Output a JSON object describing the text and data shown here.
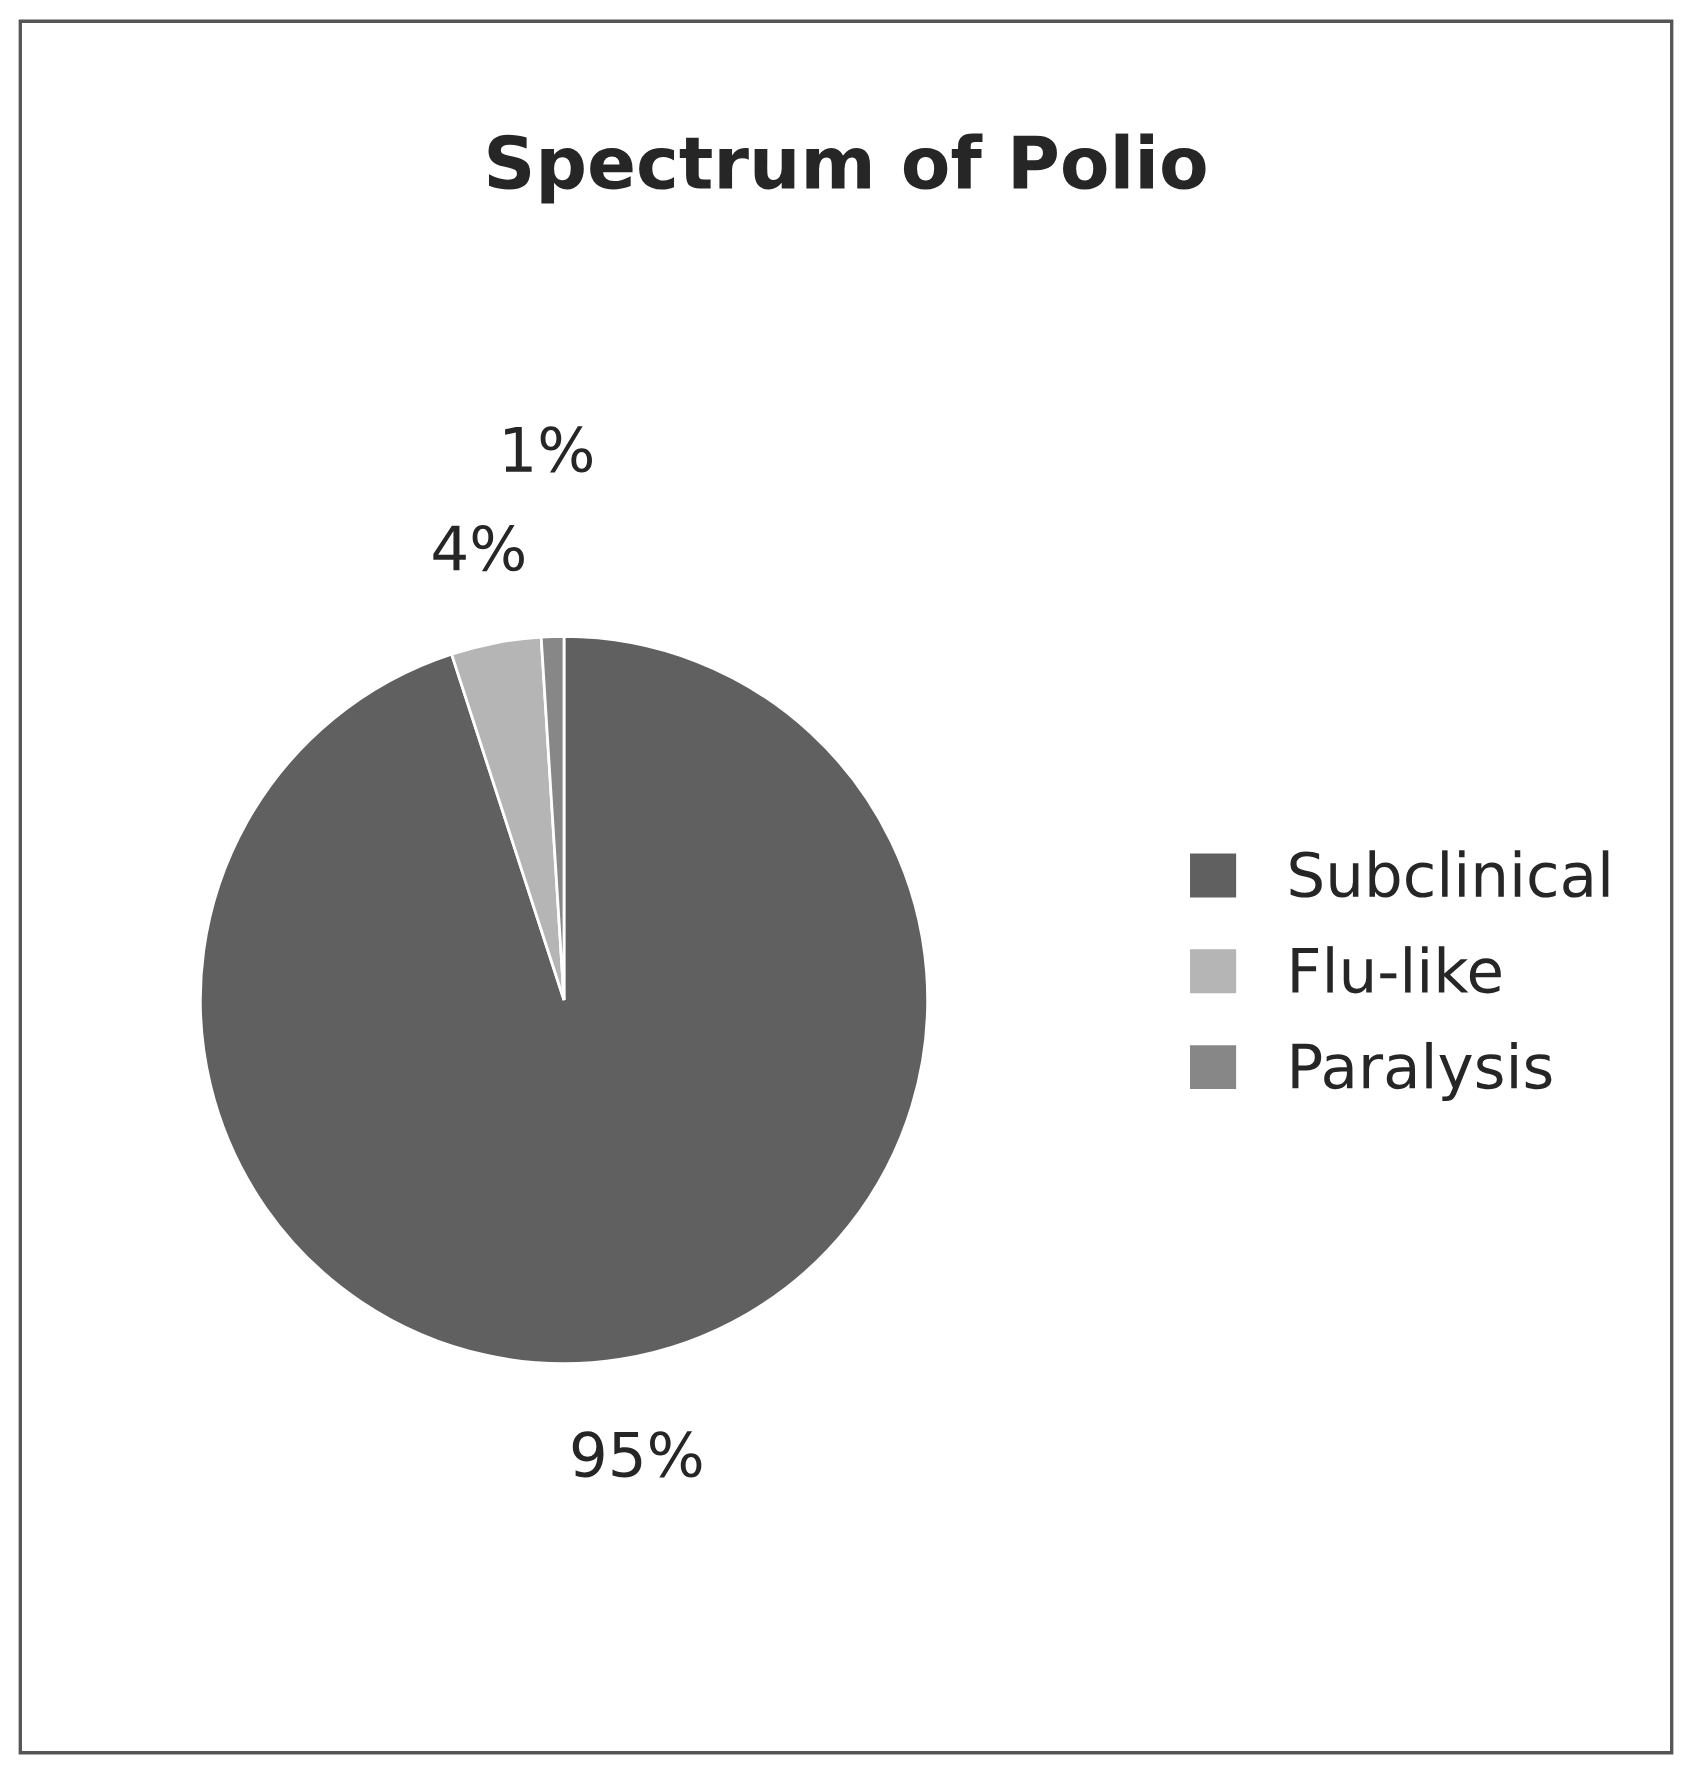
{
  "chart_data": {
    "type": "pie",
    "title": "Spectrum of Polio",
    "categories": [
      "Subclinical",
      "Flu-like",
      "Paralysis"
    ],
    "values": [
      95,
      4,
      1
    ],
    "colors": [
      "#606060",
      "#b5b5b5",
      "#878787"
    ],
    "value_labels": [
      "95%",
      "4%",
      "1%"
    ],
    "legend": "right"
  }
}
